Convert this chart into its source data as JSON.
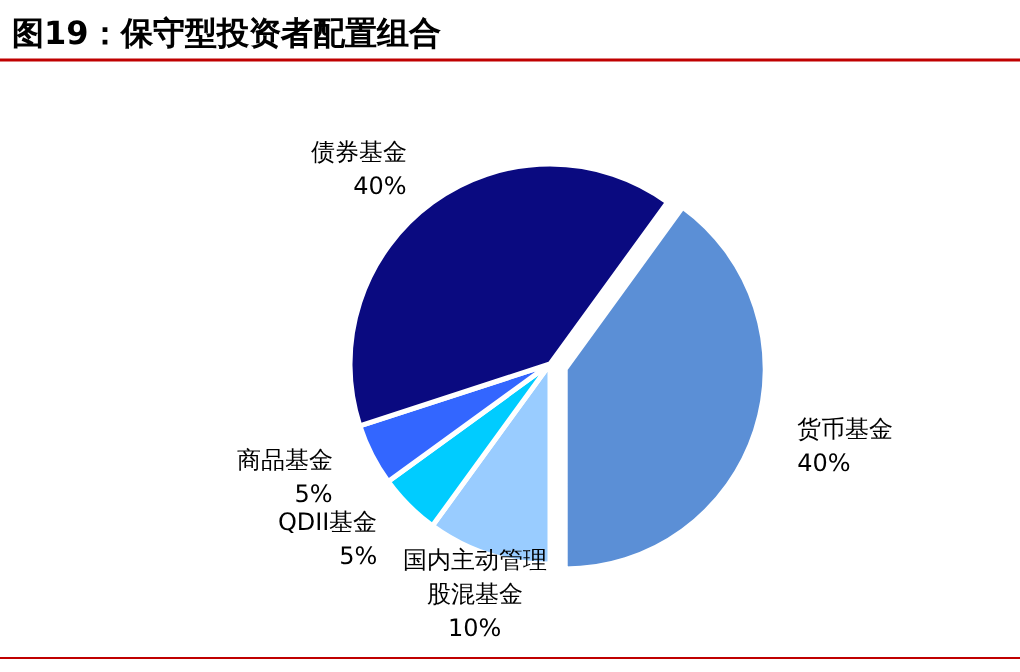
{
  "chart_data": {
    "type": "pie",
    "title": "图19：保守型投资者配置组合",
    "categories": [
      "货币基金",
      "国内主动管理股混基金",
      "QDII基金",
      "商品基金",
      "债券基金"
    ],
    "values": [
      40,
      10,
      5,
      5,
      40
    ],
    "value_labels": [
      "40%",
      "10%",
      "5%",
      "5%",
      "40%"
    ],
    "colors": [
      "#5b8fd6",
      "#99ccff",
      "#00ccff",
      "#3366ff",
      "#0a0a80"
    ]
  }
}
